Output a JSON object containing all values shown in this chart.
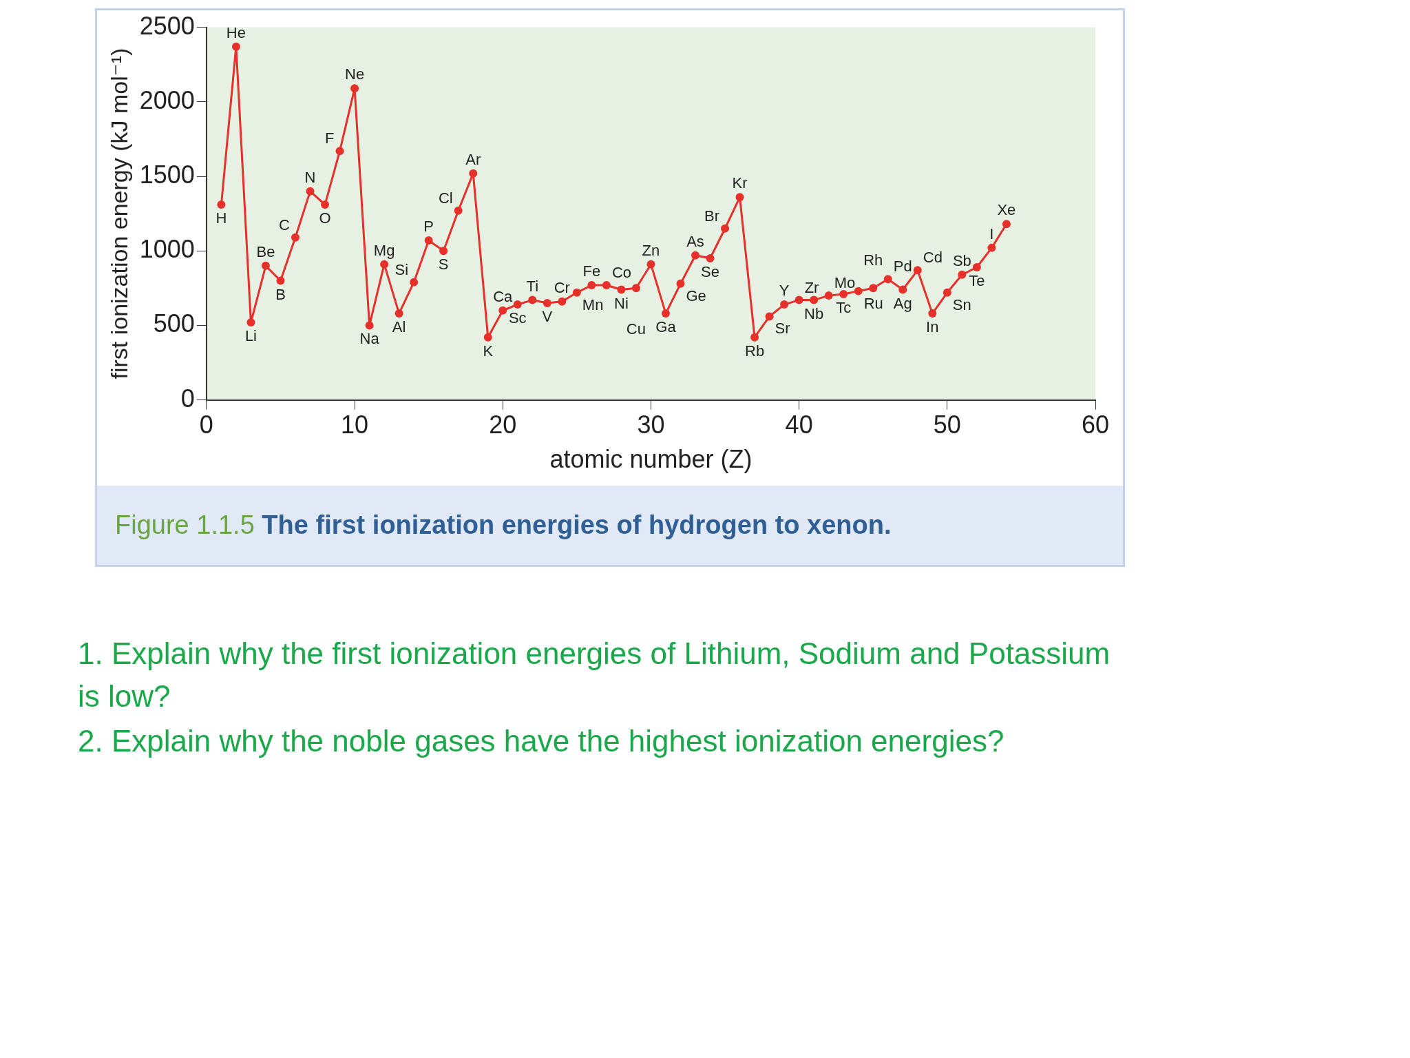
{
  "chart_data": {
    "type": "line",
    "xlabel": "atomic number (Z)",
    "ylabel": "first ionization energy (kJ mol⁻¹)",
    "x": [
      1,
      2,
      3,
      4,
      5,
      6,
      7,
      8,
      9,
      10,
      11,
      12,
      13,
      14,
      15,
      16,
      17,
      18,
      19,
      20,
      21,
      22,
      23,
      24,
      25,
      26,
      27,
      28,
      29,
      30,
      31,
      32,
      33,
      34,
      35,
      36,
      37,
      38,
      39,
      40,
      41,
      42,
      43,
      44,
      45,
      46,
      47,
      48,
      49,
      50,
      51,
      52,
      53,
      54
    ],
    "series": [
      {
        "color": "#e8302a",
        "values": [
          1310,
          2370,
          520,
          900,
          800,
          1090,
          1400,
          1310,
          1670,
          2090,
          500,
          910,
          580,
          790,
          1070,
          1000,
          1270,
          1520,
          420,
          600,
          640,
          670,
          650,
          660,
          720,
          770,
          770,
          740,
          750,
          910,
          580,
          780,
          970,
          950,
          1150,
          1360,
          420,
          560,
          640,
          670,
          670,
          700,
          710,
          730,
          750,
          810,
          740,
          870,
          580,
          720,
          840,
          890,
          1020,
          1180
        ]
      }
    ],
    "annotations": [
      {
        "text": "H",
        "x": 1,
        "y": 1310
      },
      {
        "text": "He",
        "x": 2,
        "y": 2370
      },
      {
        "text": "Li",
        "x": 3,
        "y": 520
      },
      {
        "text": "Be",
        "x": 4,
        "y": 900
      },
      {
        "text": "B",
        "x": 5,
        "y": 800
      },
      {
        "text": "C",
        "x": 6,
        "y": 1090
      },
      {
        "text": "N",
        "x": 7,
        "y": 1400
      },
      {
        "text": "O",
        "x": 8,
        "y": 1310
      },
      {
        "text": "F",
        "x": 9,
        "y": 1670
      },
      {
        "text": "Ne",
        "x": 10,
        "y": 2090
      },
      {
        "text": "Na",
        "x": 11,
        "y": 500
      },
      {
        "text": "Mg",
        "x": 12,
        "y": 910
      },
      {
        "text": "Al",
        "x": 13,
        "y": 580
      },
      {
        "text": "Si",
        "x": 14,
        "y": 790
      },
      {
        "text": "P",
        "x": 15,
        "y": 1070
      },
      {
        "text": "S",
        "x": 16,
        "y": 1000
      },
      {
        "text": "Cl",
        "x": 17,
        "y": 1270
      },
      {
        "text": "Ar",
        "x": 18,
        "y": 1520
      },
      {
        "text": "K",
        "x": 19,
        "y": 420
      },
      {
        "text": "Ca",
        "x": 20,
        "y": 600
      },
      {
        "text": "Sc",
        "x": 21,
        "y": 640
      },
      {
        "text": "Ti",
        "x": 22,
        "y": 670
      },
      {
        "text": "V",
        "x": 23,
        "y": 650
      },
      {
        "text": "Cr",
        "x": 24,
        "y": 660
      },
      {
        "text": "Mn",
        "x": 25,
        "y": 720
      },
      {
        "text": "Fe",
        "x": 26,
        "y": 770
      },
      {
        "text": "Co",
        "x": 27,
        "y": 770
      },
      {
        "text": "Ni",
        "x": 28,
        "y": 740
      },
      {
        "text": "Cu",
        "x": 29,
        "y": 750
      },
      {
        "text": "Zn",
        "x": 30,
        "y": 910
      },
      {
        "text": "Ga",
        "x": 31,
        "y": 580
      },
      {
        "text": "Ge",
        "x": 32,
        "y": 780
      },
      {
        "text": "As",
        "x": 33,
        "y": 970
      },
      {
        "text": "Se",
        "x": 34,
        "y": 950
      },
      {
        "text": "Br",
        "x": 35,
        "y": 1150
      },
      {
        "text": "Kr",
        "x": 36,
        "y": 1360
      },
      {
        "text": "Rb",
        "x": 37,
        "y": 420
      },
      {
        "text": "Sr",
        "x": 38,
        "y": 560
      },
      {
        "text": "Y",
        "x": 39,
        "y": 640
      },
      {
        "text": "Zr",
        "x": 40,
        "y": 670
      },
      {
        "text": "Nb",
        "x": 41,
        "y": 670
      },
      {
        "text": "Mo",
        "x": 42,
        "y": 700
      },
      {
        "text": "Tc",
        "x": 43,
        "y": 710
      },
      {
        "text": "Ru",
        "x": 44,
        "y": 730
      },
      {
        "text": "Rh",
        "x": 45,
        "y": 750
      },
      {
        "text": "Pd",
        "x": 46,
        "y": 810
      },
      {
        "text": "Ag",
        "x": 47,
        "y": 740
      },
      {
        "text": "Cd",
        "x": 48,
        "y": 870
      },
      {
        "text": "In",
        "x": 49,
        "y": 580
      },
      {
        "text": "Sn",
        "x": 50,
        "y": 720
      },
      {
        "text": "Sb",
        "x": 51,
        "y": 840
      },
      {
        "text": "Te",
        "x": 52,
        "y": 890
      },
      {
        "text": "I",
        "x": 53,
        "y": 1020
      },
      {
        "text": "Xe",
        "x": 54,
        "y": 1180
      },
      "Figure 1.1.5 The first ionization energies of hydrogen to xenon.",
      "1.   Explain why the first ionization energies of Lithium, Sodium and Potassium is low?",
      "2.   Explain why the noble gases have the highest ionization energies?"
    ],
    "xlim": [
      0,
      60
    ],
    "xticks": [
      0,
      10,
      20,
      30,
      40,
      50,
      60
    ],
    "ylim": [
      0,
      2500
    ],
    "yticks": [
      0,
      500,
      1000,
      1500,
      2000,
      2500
    ],
    "grid": false,
    "legend": false,
    "marker": "circle",
    "line_style": "solid"
  }
}
